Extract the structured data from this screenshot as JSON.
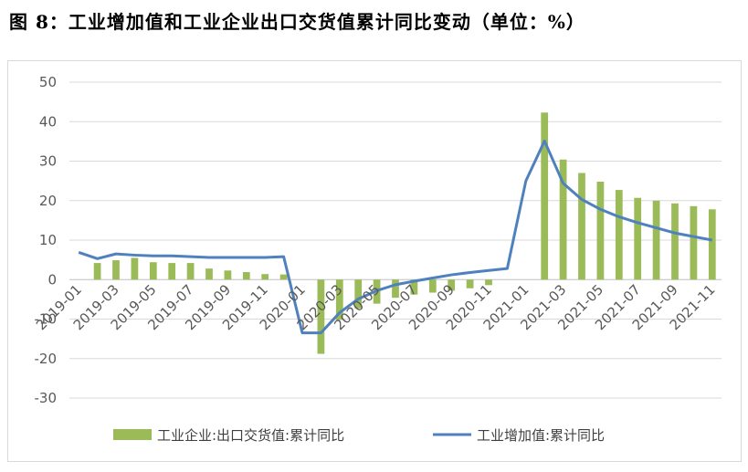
{
  "figure_title": "图 8：工业增加值和工业企业出口交货值累计同比变动（单位：%）",
  "colors": {
    "bar": "#9bbb59",
    "line": "#4f81bd",
    "grid": "#d9d9d9",
    "text": "#595959"
  },
  "chart_data": {
    "type": "bar",
    "categories": [
      "2019-01",
      "2019-02",
      "2019-03",
      "2019-04",
      "2019-05",
      "2019-06",
      "2019-07",
      "2019-08",
      "2019-09",
      "2019-10",
      "2019-11",
      "2019-12",
      "2020-01",
      "2020-02",
      "2020-03",
      "2020-04",
      "2020-05",
      "2020-06",
      "2020-07",
      "2020-08",
      "2020-09",
      "2020-10",
      "2020-11",
      "2020-12",
      "2021-01",
      "2021-02",
      "2021-03",
      "2021-04",
      "2021-05",
      "2021-06",
      "2021-07",
      "2021-08",
      "2021-09",
      "2021-10",
      "2021-11"
    ],
    "x_tick_labels": [
      "2019-01",
      "2019-03",
      "2019-05",
      "2019-07",
      "2019-09",
      "2019-11",
      "2020-01",
      "2020-03",
      "2020-05",
      "2020-07",
      "2020-09",
      "2020-11",
      "2021-01",
      "2021-03",
      "2021-05",
      "2021-07",
      "2021-09",
      "2021-11"
    ],
    "series": [
      {
        "name": "工业企业:出口交货值:累计同比",
        "type": "bar",
        "values": [
          null,
          4.2,
          4.9,
          5.5,
          4.4,
          4.2,
          4.2,
          2.8,
          2.3,
          1.9,
          1.4,
          1.3,
          null,
          -18.8,
          -10.2,
          -7.3,
          -6.1,
          -4.6,
          -3.8,
          -3.3,
          -2.8,
          -2.2,
          -1.4,
          null,
          null,
          42.3,
          30.4,
          27.0,
          24.8,
          22.7,
          20.7,
          20.0,
          19.3,
          18.6,
          17.8
        ]
      },
      {
        "name": "工业增加值:累计同比",
        "type": "line",
        "values": [
          6.9,
          5.3,
          6.5,
          6.2,
          6.0,
          6.0,
          5.8,
          5.6,
          5.6,
          5.6,
          5.6,
          5.8,
          -13.5,
          -13.5,
          -8.4,
          -4.9,
          -2.8,
          -1.3,
          -0.4,
          0.4,
          1.2,
          1.8,
          2.3,
          2.8,
          25.0,
          35.1,
          24.4,
          20.3,
          17.8,
          15.9,
          14.4,
          13.1,
          11.8,
          10.9,
          10.0
        ]
      }
    ],
    "ylim": [
      -30,
      50
    ],
    "yticks": [
      50,
      40,
      30,
      20,
      10,
      0,
      -10,
      -20,
      -30
    ],
    "grid": true,
    "legend": "bottom"
  }
}
